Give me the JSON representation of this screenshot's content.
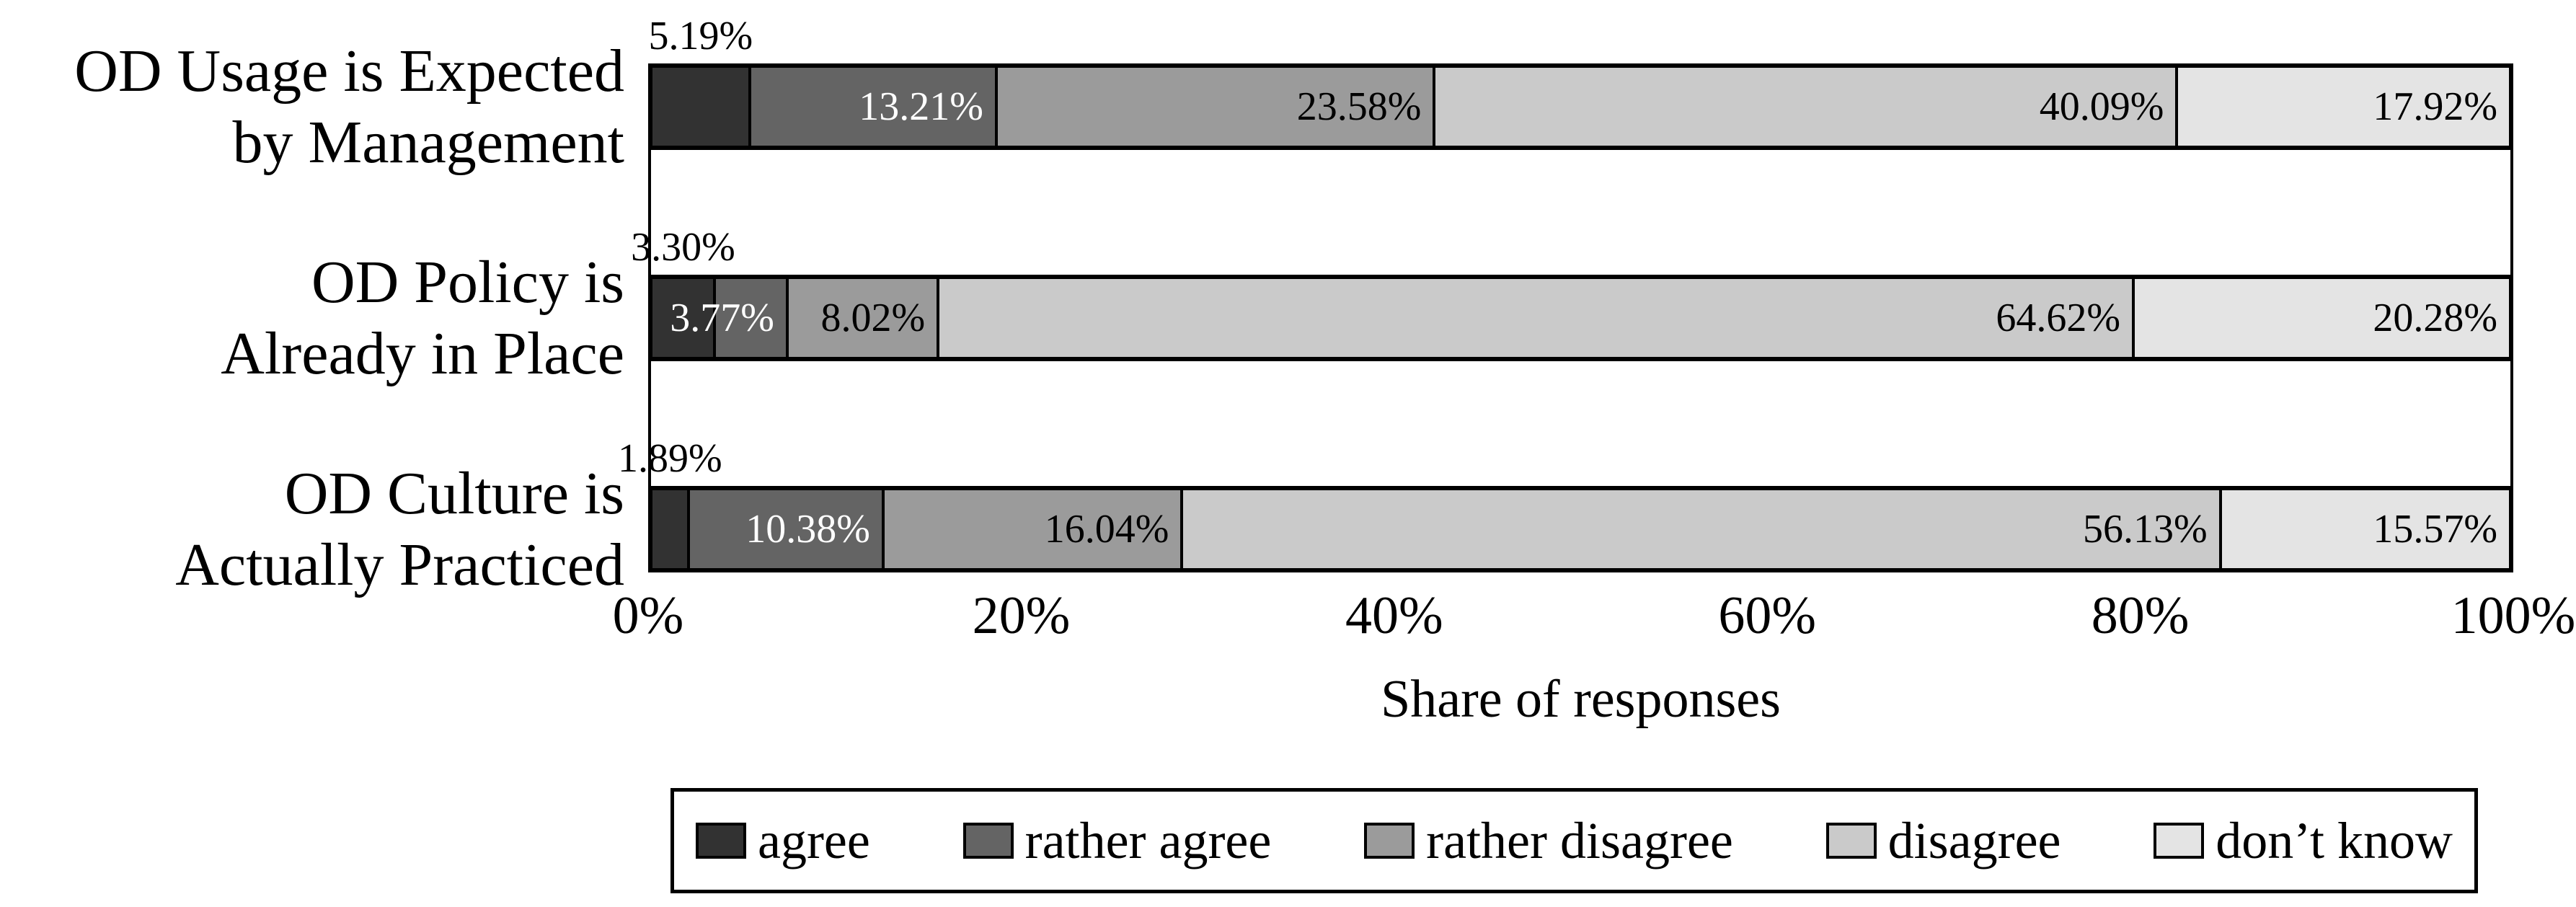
{
  "chart_data": {
    "type": "bar",
    "orientation": "horizontal",
    "stacked": true,
    "title": "",
    "xlabel": "Share of responses",
    "x_ticks": [
      "0%",
      "20%",
      "40%",
      "60%",
      "80%",
      "100%"
    ],
    "xlim": [
      0,
      100
    ],
    "grid": false,
    "legend_position": "bottom",
    "value_label_format": "2dp-percent",
    "categories": [
      {
        "label_lines": [
          "OD Usage is Expected",
          "by Management"
        ],
        "values": [
          5.19,
          13.21,
          23.58,
          40.09,
          17.92
        ]
      },
      {
        "label_lines": [
          "OD Policy is",
          "Already in Place"
        ],
        "values": [
          3.3,
          3.77,
          8.02,
          64.62,
          20.28
        ]
      },
      {
        "label_lines": [
          "OD Culture is",
          "Actually Practiced"
        ],
        "values": [
          1.89,
          10.38,
          16.04,
          56.13,
          15.57
        ]
      }
    ],
    "series": [
      {
        "key": "agree",
        "name": "agree",
        "color": "#323232",
        "text_color": "#ffffff",
        "label_position": "above"
      },
      {
        "key": "rather-agree",
        "name": "rather agree",
        "color": "#646464",
        "text_color": "#ffffff",
        "label_position": "inside"
      },
      {
        "key": "rather-disagree",
        "name": "rather disagree",
        "color": "#9b9b9b",
        "text_color": "#000000",
        "label_position": "inside"
      },
      {
        "key": "disagree",
        "name": "disagree",
        "color": "#cacaca",
        "text_color": "#000000",
        "label_position": "inside"
      },
      {
        "key": "dont-know",
        "name": "don’t know",
        "color": "#e4e4e4",
        "text_color": "#000000",
        "label_position": "inside"
      }
    ]
  }
}
